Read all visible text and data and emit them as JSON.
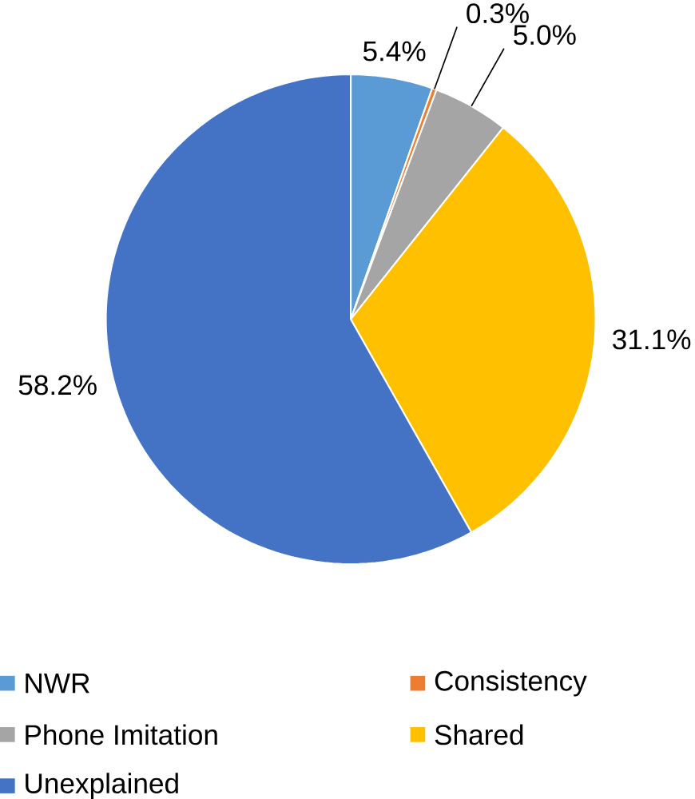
{
  "chart_data": {
    "type": "pie",
    "categories": [
      "NWR",
      "Consistency",
      "Phone Imitation",
      "Shared",
      "Unexplained"
    ],
    "values": [
      5.4,
      0.3,
      5.0,
      31.1,
      58.2
    ],
    "colors": [
      "#5b9bd5",
      "#ed7d31",
      "#a5a5a5",
      "#ffc000",
      "#4472c4"
    ],
    "value_labels": [
      "5.4%",
      "0.3%",
      "5.0%",
      "31.1%",
      "58.2%"
    ],
    "legend": "bottom"
  }
}
